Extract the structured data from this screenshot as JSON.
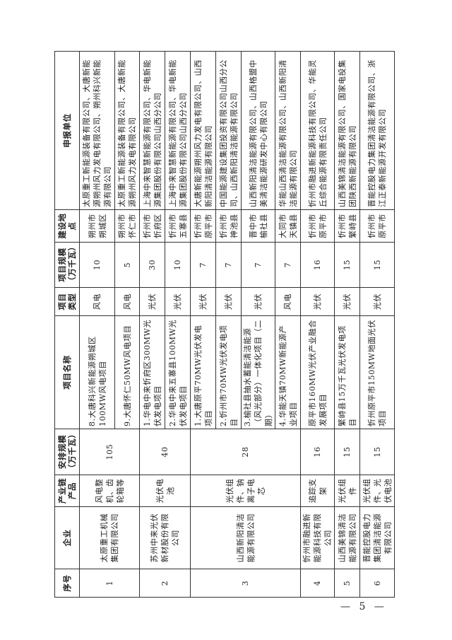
{
  "headers": [
    "序号",
    "企业",
    "产业链产品",
    "安排规模（万千瓦）",
    "项目名称",
    "项目类型",
    "项目规模（万千瓦）",
    "建设地点",
    "申报单位"
  ],
  "rows": [
    {
      "no": "1",
      "enterprise": "太原重工机械集团有限公司",
      "product": "风电整机、齿轮箱等",
      "scale": "105",
      "projects": [
        {
          "name": "8.大唐科兴新能源朔城区100MW风电项目",
          "type": "风电",
          "size": "10",
          "location": "朔州市朔城区",
          "applicant": "太原重工新能源装备有限公司、大唐新能源朔州风力发电有限公司、朔州科兴新能源有限公司"
        },
        {
          "name": "9.大唐怀仁50MW风电项目",
          "type": "风电",
          "size": "5",
          "location": "朔州市怀仁市",
          "applicant": "太原重工新能源装备有限公司、大唐新能源朔州风力发电有限公司"
        }
      ]
    },
    {
      "no": "2",
      "enterprise": "苏州中来光伏新材股份有限公司",
      "product": "光伏电池",
      "scale": "40",
      "projects": [
        {
          "name": "1.华电中来忻府区300MW光伏发电项目",
          "type": "光伏",
          "size": "30",
          "location": "忻州市忻府区",
          "applicant": "上海中来智慧新能源有限公司、华电新能源集团股份有限公司山西分公司"
        },
        {
          "name": "2.华电中来五寨县100MW光伏发电项目",
          "type": "光伏",
          "size": "10",
          "location": "忻州市五寨县",
          "applicant": "上海中来智慧新能源有限公司、华电新能源集团股份有限公司山西分公司"
        }
      ]
    },
    {
      "no": "3",
      "enterprise": "山西新阳清洁能源有限公司",
      "product": "光伏组件、钠离子电芯",
      "scale": "28",
      "projects": [
        {
          "name": "1.大唐原平70MW光伏发电项目",
          "type": "光伏",
          "size": "7",
          "location": "忻州市原平市",
          "applicant": "大唐新能源朔州风力发电有限公司、山西新阳清洁能源有限公司"
        },
        {
          "name": "2.忻州市70MW光伏发电项目",
          "type": "光伏",
          "size": "7",
          "location": "忻州市神池县",
          "applicant": "中国能源建设集团投资有限公司山西分公司、山西新阳清洁能源有限公司"
        },
        {
          "name": "3.榆社县抽水蓄能清洁能源（风光部分）一体化项目（二期）",
          "type": "光伏",
          "size": "7",
          "location": "晋中市榆社县",
          "applicant": "山西新阳清洁能源有限公司、山西格盟中美清洁能源研发中心有限公司"
        },
        {
          "name": "4.华能天镇70MW新能源产业项目",
          "type": "风电",
          "size": "7",
          "location": "大同市天镇县",
          "applicant": "华能山西清洁能源有限公司、山西新阳清洁能源有限公司"
        }
      ]
    },
    {
      "no": "4",
      "enterprise": "忻州市融进新能源科技有限公司",
      "product": "追踪支架",
      "scale": "16",
      "projects": [
        {
          "name": "原平市160MW光伏产业融合发展项目",
          "type": "光伏",
          "size": "16",
          "location": "忻州市原平市",
          "applicant": "忻州市融进新能源科技有限公司、华能灵丘综合能源有限责任公司"
        }
      ]
    },
    {
      "no": "5",
      "enterprise": "山西美锦清洁能源有限公司",
      "product": "光伏组件",
      "scale": "15",
      "projects": [
        {
          "name": "繁峙县15万千瓦光伏发电项目",
          "type": "光伏",
          "size": "15",
          "location": "忻州市繁峙县",
          "applicant": "山西美锦清洁能源有限公司、国家电投集团陕西新能源有限公司"
        }
      ]
    },
    {
      "no": "6",
      "enterprise": "晋能控股电力集团清洁能源有限公司",
      "product": "光伏组件、光伏电池",
      "scale": "15",
      "projects": [
        {
          "name": "忻州原平市150MW地面光伏项目",
          "type": "光伏",
          "size": "15",
          "location": "忻州市原平市",
          "applicant": "晋能控股电力集团清洁能源有限公司、浙江正泰新能源开发有限公司"
        }
      ]
    }
  ],
  "page_number": "— 5 —"
}
